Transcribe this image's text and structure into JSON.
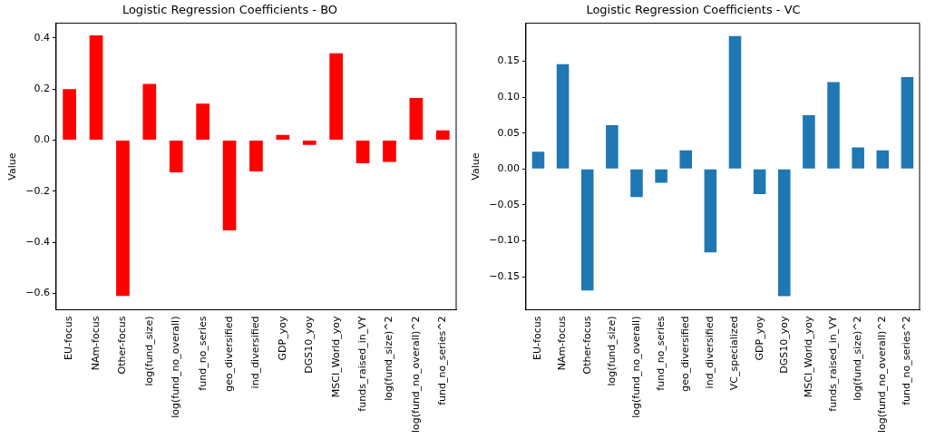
{
  "chart_data": [
    {
      "type": "bar",
      "title": "Logistic Regression Coefficients - BO",
      "ylabel": "Value",
      "categories": [
        "EU-focus",
        "NAm-focus",
        "Other-focus",
        "log(fund_size)",
        "log(fund_no_overall)",
        "fund_no_series",
        "geo_diversified",
        "ind_diversified",
        "GDP_yoy",
        "DGS10_yoy",
        "MSCI_World_yoy",
        "funds_raised_in_VY",
        "log(fund_size)^2",
        "log(fund_no_overall)^2",
        "fund_no_series^2"
      ],
      "values": [
        0.2,
        0.41,
        -0.61,
        0.22,
        -0.126,
        0.143,
        -0.353,
        -0.122,
        0.021,
        -0.018,
        0.34,
        -0.09,
        -0.085,
        0.165,
        0.038
      ],
      "color": "#ff0000",
      "ylim": [
        -0.664,
        0.458
      ],
      "yticks": [
        {
          "value": -0.6,
          "label": "−0.6"
        },
        {
          "value": -0.4,
          "label": "−0.4"
        },
        {
          "value": -0.2,
          "label": "−0.2"
        },
        {
          "value": 0,
          "label": "0.0"
        },
        {
          "value": 0.2,
          "label": "0.2"
        },
        {
          "value": 0.4,
          "label": "0.4"
        }
      ],
      "grid": false,
      "legend": false
    },
    {
      "type": "bar",
      "title": "Logistic Regression Coefficients - VC",
      "ylabel": "Value",
      "categories": [
        "EU-focus",
        "NAm-focus",
        "Other-focus",
        "log(fund_size)",
        "log(fund_no_overall)",
        "fund_no_series",
        "geo_diversified",
        "ind_diversified",
        "VC_specialized",
        "GDP_yoy",
        "DGS10_yoy",
        "MSCI_World_yoy",
        "funds_raised_in_VY",
        "log(fund_size)^2",
        "log(fund_no_overall)^2",
        "fund_no_series^2"
      ],
      "values": [
        0.024,
        0.146,
        -0.169,
        0.061,
        -0.039,
        -0.019,
        0.026,
        -0.116,
        0.185,
        -0.035,
        -0.177,
        0.075,
        0.121,
        0.03,
        0.026,
        0.128
      ],
      "color": "#1f77b4",
      "ylim": [
        -0.196,
        0.203
      ],
      "yticks": [
        {
          "value": -0.15,
          "label": "−0.15"
        },
        {
          "value": -0.1,
          "label": "−0.10"
        },
        {
          "value": -0.05,
          "label": "−0.05"
        },
        {
          "value": 0,
          "label": "0.00"
        },
        {
          "value": 0.05,
          "label": "0.05"
        },
        {
          "value": 0.1,
          "label": "0.10"
        },
        {
          "value": 0.15,
          "label": "0.15"
        }
      ],
      "grid": false,
      "legend": false
    }
  ]
}
